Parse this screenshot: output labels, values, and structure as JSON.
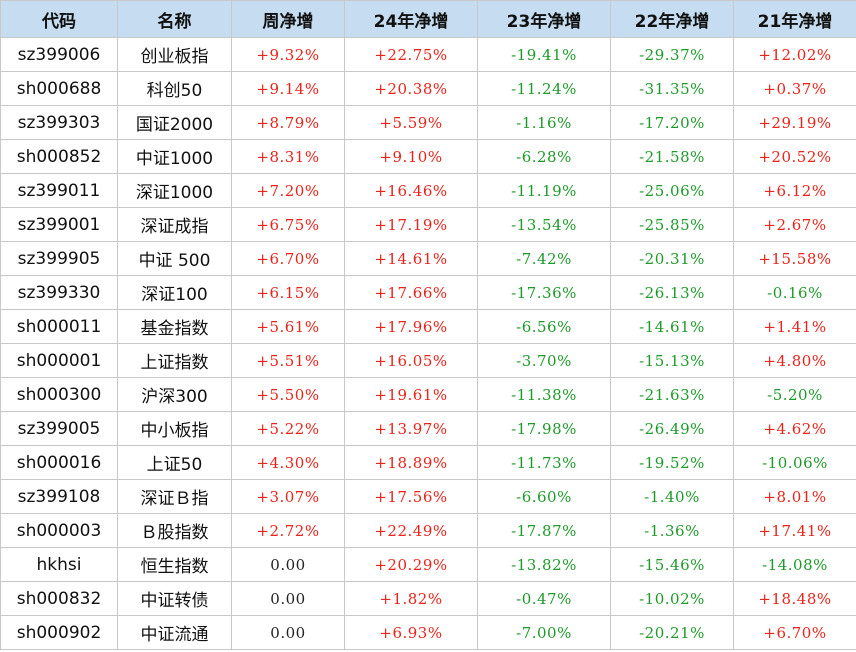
{
  "colors": {
    "positive": "#e8241c",
    "negative": "#1e9a2a",
    "neutral": "#222222",
    "header_bg": "#c6dcf0"
  },
  "headers": [
    "代码",
    "名称",
    "周净增",
    "24年净增",
    "23年净增",
    "22年净增",
    "21年净增"
  ],
  "rows": [
    {
      "code": "sz399006",
      "name": "创业板指",
      "values": [
        "+9.32%",
        "+22.75%",
        "-19.41%",
        "-29.37%",
        "+12.02%"
      ]
    },
    {
      "code": "sh000688",
      "name": "科创50",
      "values": [
        "+9.14%",
        "+20.38%",
        "-11.24%",
        "-31.35%",
        "+0.37%"
      ]
    },
    {
      "code": "sz399303",
      "name": "国证2000",
      "values": [
        "+8.79%",
        "+5.59%",
        "-1.16%",
        "-17.20%",
        "+29.19%"
      ]
    },
    {
      "code": "sh000852",
      "name": "中证1000",
      "values": [
        "+8.31%",
        "+9.10%",
        "-6.28%",
        "-21.58%",
        "+20.52%"
      ]
    },
    {
      "code": "sz399011",
      "name": "深证1000",
      "values": [
        "+7.20%",
        "+16.46%",
        "-11.19%",
        "-25.06%",
        "+6.12%"
      ]
    },
    {
      "code": "sz399001",
      "name": "深证成指",
      "values": [
        "+6.75%",
        "+17.19%",
        "-13.54%",
        "-25.85%",
        "+2.67%"
      ]
    },
    {
      "code": "sz399905",
      "name": "中证 500",
      "values": [
        "+6.70%",
        "+14.61%",
        "-7.42%",
        "-20.31%",
        "+15.58%"
      ]
    },
    {
      "code": "sz399330",
      "name": "深证100",
      "values": [
        "+6.15%",
        "+17.66%",
        "-17.36%",
        "-26.13%",
        "-0.16%"
      ]
    },
    {
      "code": "sh000011",
      "name": "基金指数",
      "values": [
        "+5.61%",
        "+17.96%",
        "-6.56%",
        "-14.61%",
        "+1.41%"
      ]
    },
    {
      "code": "sh000001",
      "name": "上证指数",
      "values": [
        "+5.51%",
        "+16.05%",
        "-3.70%",
        "-15.13%",
        "+4.80%"
      ]
    },
    {
      "code": "sh000300",
      "name": "沪深300",
      "values": [
        "+5.50%",
        "+19.61%",
        "-11.38%",
        "-21.63%",
        "-5.20%"
      ]
    },
    {
      "code": "sz399005",
      "name": "中小板指",
      "values": [
        "+5.22%",
        "+13.97%",
        "-17.98%",
        "-26.49%",
        "+4.62%"
      ]
    },
    {
      "code": "sh000016",
      "name": "上证50",
      "values": [
        "+4.30%",
        "+18.89%",
        "-11.73%",
        "-19.52%",
        "-10.06%"
      ]
    },
    {
      "code": "sz399108",
      "name": "深证Ｂ指",
      "values": [
        "+3.07%",
        "+17.56%",
        "-6.60%",
        "-1.40%",
        "+8.01%"
      ]
    },
    {
      "code": "sh000003",
      "name": "Ｂ股指数",
      "values": [
        "+2.72%",
        "+22.49%",
        "-17.87%",
        "-1.36%",
        "+17.41%"
      ]
    },
    {
      "code": "hkhsi",
      "name": "恒生指数",
      "values": [
        "0.00",
        "+20.29%",
        "-13.82%",
        "-15.46%",
        "-14.08%"
      ]
    },
    {
      "code": "sh000832",
      "name": "中证转债",
      "values": [
        "0.00",
        "+1.82%",
        "-0.47%",
        "-10.02%",
        "+18.48%"
      ]
    },
    {
      "code": "sh000902",
      "name": "中证流通",
      "values": [
        "0.00",
        "+6.93%",
        "-7.00%",
        "-20.21%",
        "+6.70%"
      ]
    }
  ]
}
